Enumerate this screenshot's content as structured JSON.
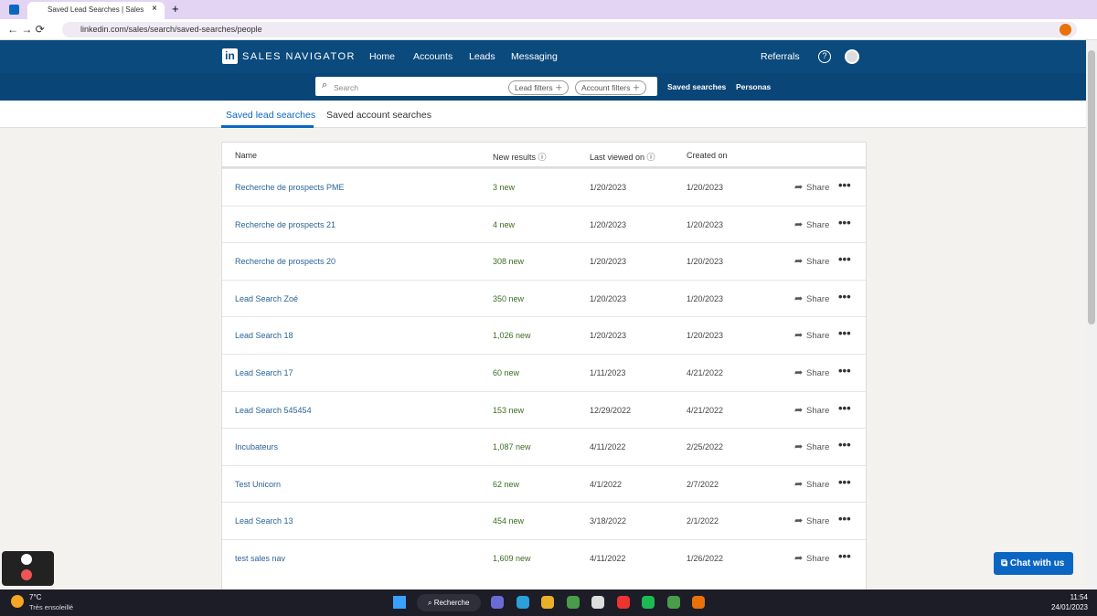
{
  "browser": {
    "tab_title": "Saved Lead Searches | Sales Nav",
    "url": "linkedin.com/sales/search/saved-searches/people"
  },
  "nav": {
    "logo": "in",
    "brand": "SALES NAVIGATOR",
    "items": [
      "Home",
      "Accounts",
      "Leads",
      "Messaging"
    ],
    "referrals": "Referrals"
  },
  "search": {
    "placeholder": "Search",
    "filters": [
      "Lead filters",
      "Account filters"
    ],
    "links": [
      "Saved searches",
      "Personas"
    ]
  },
  "tabs": [
    "Saved lead searches",
    "Saved account searches"
  ],
  "table": {
    "headers": [
      "Name",
      "New results",
      "Last viewed on",
      "Created on"
    ],
    "share_label": "Share",
    "rows": [
      [
        "Recherche de prospects PME",
        "3 new",
        "1/20/2023",
        "1/20/2023"
      ],
      [
        "Recherche de prospects 21",
        "4 new",
        "1/20/2023",
        "1/20/2023"
      ],
      [
        "Recherche de prospects 20",
        "308 new",
        "1/20/2023",
        "1/20/2023"
      ],
      [
        "Lead Search Zoé",
        "350 new",
        "1/20/2023",
        "1/20/2023"
      ],
      [
        "Lead Search 18",
        "1,026 new",
        "1/20/2023",
        "1/20/2023"
      ],
      [
        "Lead Search 17",
        "60 new",
        "1/11/2023",
        "4/21/2022"
      ],
      [
        "Lead Search 545454",
        "153 new",
        "12/29/2022",
        "4/21/2022"
      ],
      [
        "Incubateurs",
        "1,087 new",
        "4/11/2022",
        "2/25/2022"
      ],
      [
        "Test Unicorn",
        "62 new",
        "4/1/2022",
        "2/7/2022"
      ],
      [
        "Lead Search 13",
        "454 new",
        "3/18/2022",
        "2/1/2022"
      ],
      [
        "test sales nav",
        "1,609 new",
        "4/11/2022",
        "1/26/2022"
      ]
    ]
  },
  "chat_button": "Chat with us",
  "taskbar": {
    "temperature": "7°C",
    "weather": "Très ensoleillé",
    "search": "Recherche",
    "time": "11:54",
    "date": "24/01/2023"
  }
}
